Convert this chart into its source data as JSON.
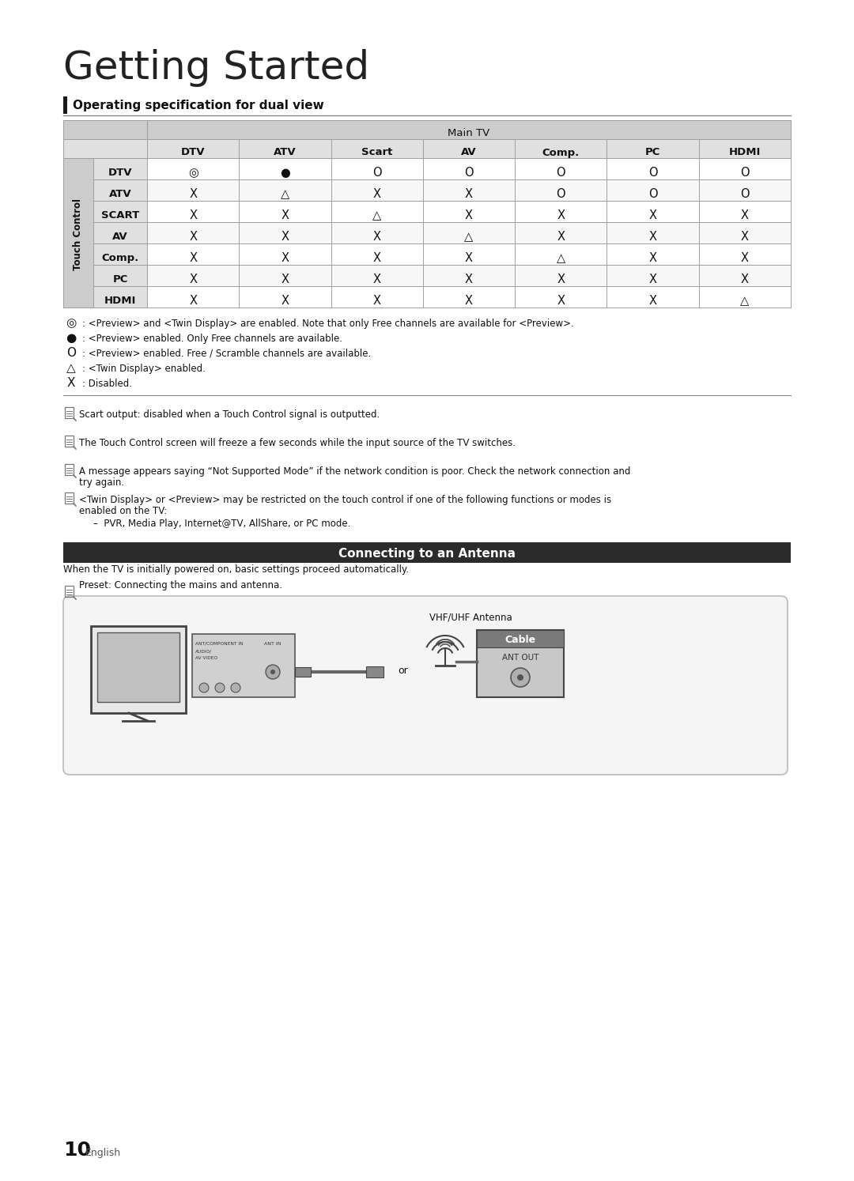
{
  "title": "Getting Started",
  "section1_title": "Operating specification for dual view",
  "section2_title": "Connecting to an Antenna",
  "bg_color": "#ffffff",
  "table_header_bg": "#cccccc",
  "table_subheader_bg": "#e0e0e0",
  "table_row_bg1": "#ffffff",
  "table_row_bg2": "#ffffff",
  "table_side_header_bg": "#cccccc",
  "main_tv_cols": [
    "DTV",
    "ATV",
    "Scart",
    "AV",
    "Comp.",
    "PC",
    "HDMI"
  ],
  "touch_rows": [
    "DTV",
    "ATV",
    "SCART",
    "AV",
    "Comp.",
    "PC",
    "HDMI"
  ],
  "table_data": [
    [
      "◎",
      "●",
      "O",
      "O",
      "O",
      "O",
      "O"
    ],
    [
      "X",
      "△",
      "X",
      "X",
      "O",
      "O",
      "O"
    ],
    [
      "X",
      "X",
      "△",
      "X",
      "X",
      "X",
      "X"
    ],
    [
      "X",
      "X",
      "X",
      "△",
      "X",
      "X",
      "X"
    ],
    [
      "X",
      "X",
      "X",
      "X",
      "△",
      "X",
      "X"
    ],
    [
      "X",
      "X",
      "X",
      "X",
      "X",
      "X",
      "X"
    ],
    [
      "X",
      "X",
      "X",
      "X",
      "X",
      "X",
      "△"
    ]
  ],
  "legend_items": [
    [
      "◎",
      ": <Preview> and <Twin Display> are enabled. Note that only Free channels are available for <Preview>."
    ],
    [
      "●",
      ": <Preview> enabled. Only Free channels are available."
    ],
    [
      "O",
      ": <Preview> enabled. Free / Scramble channels are available."
    ],
    [
      "△",
      ": <Twin Display> enabled."
    ],
    [
      "X",
      ": Disabled."
    ]
  ],
  "notes": [
    "Scart output: disabled when a Touch Control signal is outputted.",
    "The Touch Control screen will freeze a few seconds while the input source of the TV switches.",
    "A message appears saying “Not Supported Mode” if the network condition is poor. Check the network connection and try again.",
    "<Twin Display> or <Preview> may be restricted on the touch control if one of the following functions or modes is enabled on the TV:"
  ],
  "notes_indent": [
    false,
    false,
    true,
    true
  ],
  "pvr_note": "–  PVR, Media Play, Internet@TV, AllShare, or PC mode.",
  "antenna_text1": "When the TV is initially powered on, basic settings proceed automatically.",
  "antenna_text2": "Preset: Connecting the mains and antenna.",
  "page_number": "10",
  "page_lang": "English",
  "note_icon_color": "#888888",
  "line_color": "#aaaaaa",
  "border_color": "#999999"
}
